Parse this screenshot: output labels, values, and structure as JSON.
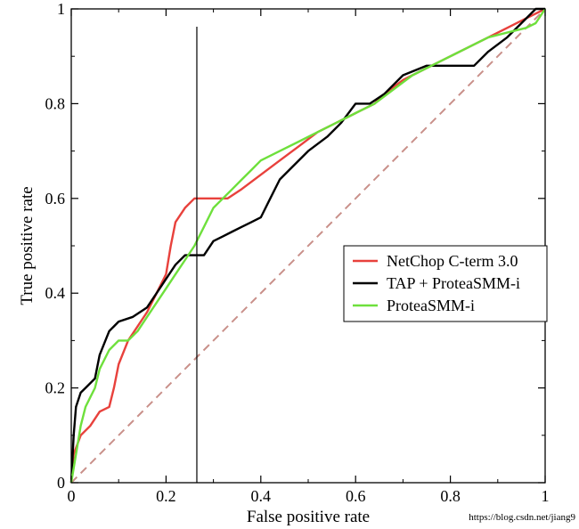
{
  "chart_data": {
    "type": "line",
    "title": "",
    "xlabel": "False positive rate",
    "ylabel": "True positive rate",
    "xlim": [
      0,
      1
    ],
    "ylim": [
      0,
      1
    ],
    "xticks": [
      0,
      0.2,
      0.4,
      0.6,
      0.8,
      1
    ],
    "yticks": [
      0,
      0.2,
      0.4,
      0.6,
      0.8,
      1
    ],
    "xtick_labels": [
      "0",
      "0.2",
      "0.4",
      "0.6",
      "0.8",
      "1"
    ],
    "ytick_labels": [
      "0",
      "0.2",
      "0.4",
      "0.6",
      "0.8",
      "1"
    ],
    "grid": false,
    "legend_position": "right",
    "vertical_marker_x": 0.265,
    "series": [
      {
        "name": "NetChop C-term 3.0",
        "color": "#e8413c",
        "style": "solid",
        "x": [
          0,
          0.005,
          0.02,
          0.04,
          0.06,
          0.08,
          0.09,
          0.1,
          0.12,
          0.14,
          0.16,
          0.18,
          0.2,
          0.21,
          0.22,
          0.24,
          0.26,
          0.28,
          0.3,
          0.33,
          0.36,
          0.4,
          0.44,
          0.48,
          0.52,
          0.56,
          0.6,
          0.64,
          0.66,
          0.7,
          0.72,
          0.76,
          0.8,
          0.84,
          0.88,
          0.92,
          0.96,
          1
        ],
        "y": [
          0,
          0.06,
          0.1,
          0.12,
          0.15,
          0.16,
          0.2,
          0.25,
          0.3,
          0.33,
          0.36,
          0.4,
          0.44,
          0.5,
          0.55,
          0.58,
          0.6,
          0.6,
          0.6,
          0.6,
          0.62,
          0.65,
          0.68,
          0.71,
          0.74,
          0.76,
          0.78,
          0.8,
          0.82,
          0.85,
          0.86,
          0.88,
          0.9,
          0.92,
          0.94,
          0.96,
          0.98,
          1
        ]
      },
      {
        "name": "TAP + ProteaSMM-i",
        "color": "#000000",
        "style": "solid",
        "x": [
          0,
          0.005,
          0.01,
          0.02,
          0.03,
          0.05,
          0.06,
          0.08,
          0.1,
          0.13,
          0.16,
          0.18,
          0.2,
          0.22,
          0.24,
          0.26,
          0.28,
          0.3,
          0.32,
          0.34,
          0.36,
          0.38,
          0.4,
          0.42,
          0.44,
          0.46,
          0.5,
          0.54,
          0.57,
          0.6,
          0.63,
          0.66,
          0.7,
          0.75,
          0.8,
          0.85,
          0.88,
          0.92,
          0.95,
          0.98,
          1
        ],
        "y": [
          0,
          0.1,
          0.16,
          0.19,
          0.2,
          0.22,
          0.27,
          0.32,
          0.34,
          0.35,
          0.37,
          0.4,
          0.43,
          0.46,
          0.48,
          0.48,
          0.48,
          0.51,
          0.52,
          0.53,
          0.54,
          0.55,
          0.56,
          0.6,
          0.64,
          0.66,
          0.7,
          0.73,
          0.76,
          0.8,
          0.8,
          0.82,
          0.86,
          0.88,
          0.88,
          0.88,
          0.91,
          0.94,
          0.97,
          1,
          1
        ]
      },
      {
        "name": "ProteaSMM-i",
        "color": "#6ee03c",
        "style": "solid",
        "x": [
          0,
          0.01,
          0.02,
          0.03,
          0.04,
          0.05,
          0.06,
          0.08,
          0.1,
          0.12,
          0.14,
          0.16,
          0.18,
          0.2,
          0.22,
          0.24,
          0.26,
          0.28,
          0.3,
          0.32,
          0.34,
          0.36,
          0.38,
          0.4,
          0.44,
          0.48,
          0.52,
          0.56,
          0.6,
          0.64,
          0.68,
          0.72,
          0.76,
          0.8,
          0.84,
          0.88,
          0.92,
          0.96,
          0.98,
          1
        ],
        "y": [
          0,
          0.06,
          0.12,
          0.16,
          0.18,
          0.2,
          0.24,
          0.28,
          0.3,
          0.3,
          0.32,
          0.35,
          0.38,
          0.41,
          0.44,
          0.47,
          0.5,
          0.54,
          0.58,
          0.6,
          0.62,
          0.64,
          0.66,
          0.68,
          0.7,
          0.72,
          0.74,
          0.76,
          0.78,
          0.8,
          0.83,
          0.86,
          0.88,
          0.9,
          0.92,
          0.94,
          0.95,
          0.96,
          0.97,
          1
        ]
      },
      {
        "name": "",
        "color": "#c9908a",
        "style": "dashed",
        "x": [
          0,
          1
        ],
        "y": [
          0,
          1
        ]
      }
    ]
  },
  "watermark": "https://blog.csdn.net/jiang9"
}
